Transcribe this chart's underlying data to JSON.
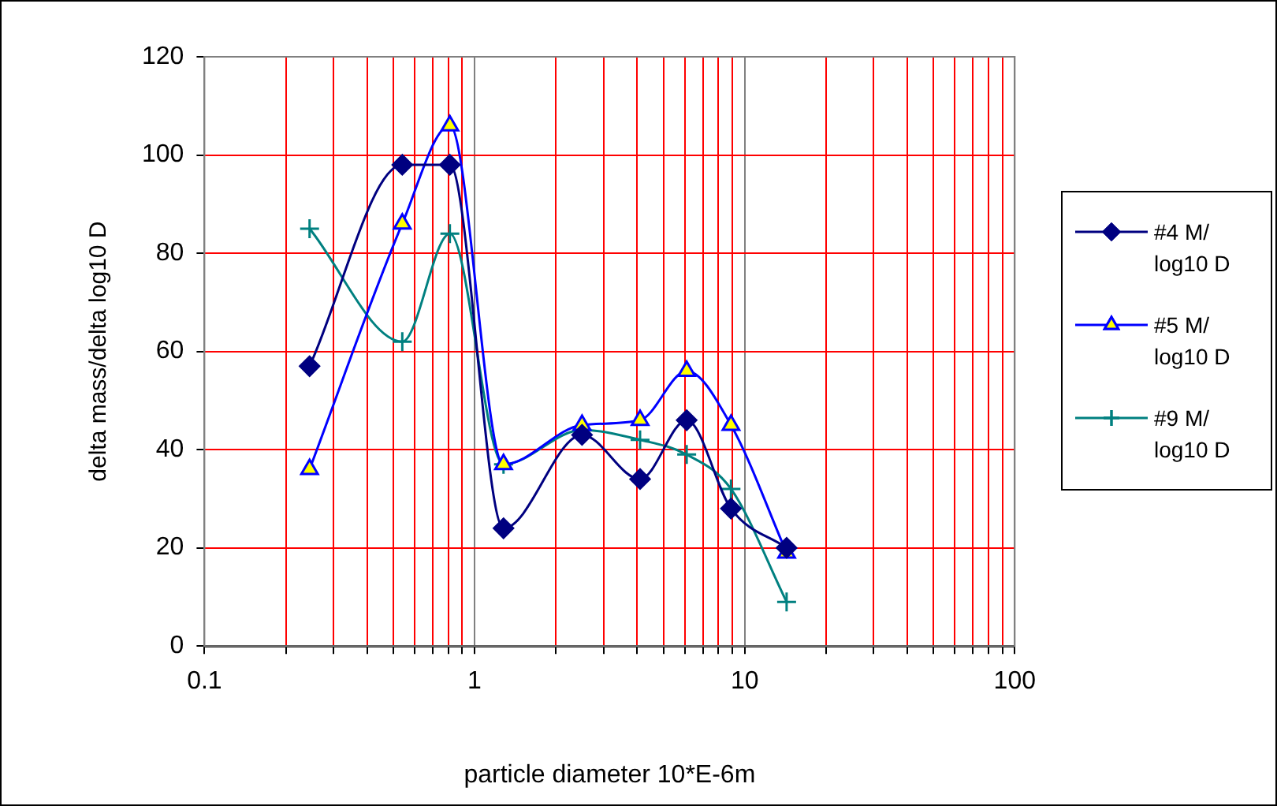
{
  "chart_data": {
    "type": "line",
    "xlabel": "particle diameter 10*E-6m",
    "ylabel": "delta mass/delta log10 D",
    "log": "x",
    "xlim": [
      0.1,
      100
    ],
    "xticks": [
      0.1,
      {
        "value": 0.2,
        "label": null
      },
      {
        "value": 0.3,
        "label": null
      },
      {
        "value": 0.4,
        "label": null
      },
      {
        "value": 0.5,
        "label": null
      },
      {
        "value": 0.6,
        "label": null
      },
      {
        "value": 0.7,
        "label": null
      },
      {
        "value": 0.8,
        "label": null
      },
      {
        "value": 0.9,
        "label": null
      },
      1,
      {
        "value": 2,
        "label": null
      },
      {
        "value": 3,
        "label": null
      },
      {
        "value": 4,
        "label": null
      },
      {
        "value": 5,
        "label": null
      },
      {
        "value": 6,
        "label": null
      },
      {
        "value": 7,
        "label": null
      },
      {
        "value": 8,
        "label": null
      },
      {
        "value": 9,
        "label": null
      },
      10,
      {
        "value": 20,
        "label": null
      },
      {
        "value": 30,
        "label": null
      },
      {
        "value": 40,
        "label": null
      },
      {
        "value": 50,
        "label": null
      },
      {
        "value": 60,
        "label": null
      },
      {
        "value": 70,
        "label": null
      },
      {
        "value": 80,
        "label": null
      },
      {
        "value": 90,
        "label": null
      },
      100
    ],
    "ylim": [
      0,
      120
    ],
    "yticks": [
      0,
      20,
      40,
      60,
      80,
      100,
      120
    ],
    "grid": true,
    "legend": "right",
    "x": [
      0.245,
      0.54,
      0.81,
      1.28,
      2.5,
      4.1,
      6.1,
      8.9,
      14.3
    ],
    "series": [
      {
        "name": "#4 M/ log10 D",
        "color": "#000080",
        "marker": "diamond",
        "values": [
          57,
          98,
          98,
          24,
          43,
          34,
          46,
          28,
          20
        ]
      },
      {
        "name": "#5 M/ log10 D",
        "color": "#0000ff",
        "marker": "triangle",
        "values": [
          36,
          86,
          106,
          37,
          45,
          46,
          56,
          45,
          19
        ]
      },
      {
        "name": "#9 M/ log10 D",
        "color": "#008080",
        "marker": "cross",
        "values": [
          85,
          62,
          84,
          37,
          44,
          42,
          39,
          32,
          9
        ]
      }
    ]
  }
}
